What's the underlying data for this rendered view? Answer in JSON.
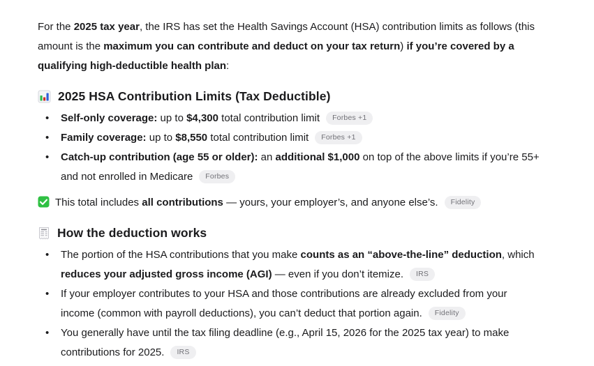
{
  "page": {
    "background": "#ffffff",
    "text_color": "#1b1b1d",
    "badge_bg": "#efeff1",
    "badge_text_color": "#707076",
    "icon_colors": {
      "bar_green": "#2eb84d",
      "bar_red": "#cc2f26",
      "bar_blue": "#2b5fd9",
      "check_green": "#2fc043",
      "receipt_line": "#9a9aa0"
    }
  },
  "intro": {
    "segments": [
      {
        "t": "For the "
      },
      {
        "t": "2025 tax year",
        "b": true
      },
      {
        "t": ", the IRS has set the Health Savings Account (HSA) contribution limits as follows (this amount is the "
      },
      {
        "t": "maximum you can contribute and deduct on your tax return",
        "b": true
      },
      {
        "t": ") "
      },
      {
        "t": "if you’re covered by a qualifying high-deductible health plan",
        "b": true
      },
      {
        "t": ":"
      }
    ]
  },
  "section1": {
    "icon": "bar-chart-emoji",
    "title": "2025 HSA Contribution Limits (Tax Deductible)",
    "bullets": [
      {
        "segments": [
          {
            "t": "Self-only coverage:",
            "b": true
          },
          {
            "t": " up to "
          },
          {
            "t": "$4,300",
            "b": true
          },
          {
            "t": " total contribution limit"
          }
        ],
        "badge": "Forbes +1"
      },
      {
        "segments": [
          {
            "t": "Family coverage:",
            "b": true
          },
          {
            "t": " up to "
          },
          {
            "t": "$8,550",
            "b": true
          },
          {
            "t": " total contribution limit"
          }
        ],
        "badge": "Forbes +1"
      },
      {
        "segments": [
          {
            "t": "Catch-up contribution (age 55 or older):",
            "b": true
          },
          {
            "t": " an "
          },
          {
            "t": "additional $1,000",
            "b": true
          },
          {
            "t": " on top of the above limits if you’re 55+ and not enrolled in Medicare"
          }
        ],
        "badge": "Forbes"
      }
    ]
  },
  "note": {
    "icon": "check-mark-emoji",
    "segments": [
      {
        "t": "This total includes "
      },
      {
        "t": "all contributions",
        "b": true
      },
      {
        "t": " — yours, your employer’s, and anyone else’s."
      }
    ],
    "badge": "Fidelity"
  },
  "section2": {
    "icon": "receipt-emoji",
    "title": "How the deduction works",
    "bullets": [
      {
        "segments": [
          {
            "t": "The portion of the HSA contributions that you make "
          },
          {
            "t": "counts as an “above-the-line” deduction",
            "b": true
          },
          {
            "t": ", which "
          },
          {
            "t": "reduces your adjusted gross income (AGI)",
            "b": true
          },
          {
            "t": " — even if you don’t itemize."
          }
        ],
        "badge": "IRS"
      },
      {
        "segments": [
          {
            "t": "If your employer contributes to your HSA and those contributions are already excluded from your income (common with payroll deductions), you can’t deduct that portion again."
          }
        ],
        "badge": "Fidelity"
      },
      {
        "segments": [
          {
            "t": "You generally have until the tax filing deadline (e.g., April 15, 2026 for the 2025 tax year) to make contributions for 2025."
          }
        ],
        "badge": "IRS"
      }
    ]
  }
}
